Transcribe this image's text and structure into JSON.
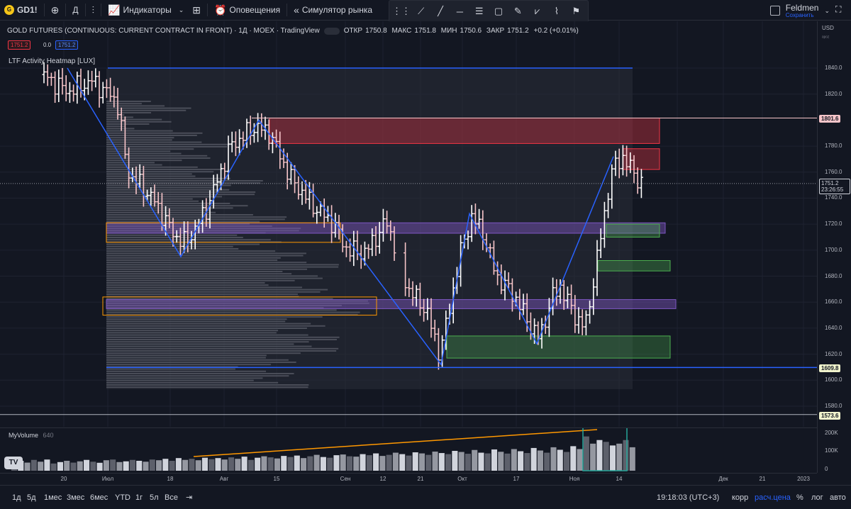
{
  "toolbar": {
    "symbol": "GD1!",
    "interval": "Д",
    "indicators_label": "Индикаторы",
    "alerts_label": "Оповещения",
    "replay_label": "Симулятор рынка",
    "user_name": "Feldmen",
    "user_status": "Сохранить"
  },
  "legend": {
    "title": "GOLD FUTURES (CONTINUOUS: CURRENT CONTRACT IN FRONT) · 1Д · MOEX · TradingView",
    "open_label": "ОТКР",
    "open": "1750.8",
    "high_label": "МАКС",
    "high": "1751.8",
    "low_label": "МИН",
    "low": "1750.6",
    "close_label": "ЗАКР",
    "close": "1751.2",
    "change": "+0.2 (+0.01%)",
    "bid": "1751.2",
    "spread": "0.0",
    "ask": "1751.2",
    "indicator_name": "LTF Activity Heatmap [LUX]"
  },
  "volume_legend": {
    "name": "MyVolume",
    "value": "640"
  },
  "price_axis": {
    "currency": "USD",
    "unit": "ᵃᵖᵒᶻ",
    "labels": [
      "1840.0",
      "1820.0",
      "1780.0",
      "1760.0",
      "1740.0",
      "1720.0",
      "1700.0",
      "1680.0",
      "1660.0",
      "1640.0",
      "1620.0",
      "1600.0",
      "1580.0"
    ],
    "tag_high": "1801.6",
    "tag_last": "1751.2",
    "tag_timer": "23:26:55",
    "tag_low": "1609.8",
    "tag_bottom": "1573.6",
    "volume_labels": [
      "200K",
      "100K",
      "0"
    ]
  },
  "time_axis": {
    "labels": [
      "20",
      "Июл",
      "18",
      "Авг",
      "15",
      "Сен",
      "12",
      "21",
      "Окт",
      "17",
      "Ноя",
      "14",
      "Дек",
      "21",
      "2023"
    ]
  },
  "bottom_bar": {
    "ranges": [
      "1д",
      "5д",
      "1мес",
      "3мес",
      "6мес",
      "YTD",
      "1г",
      "5л",
      "Все"
    ],
    "clock": "19:18:03 (UTC+3)",
    "adj": "корр",
    "price_mode": "расч.цена",
    "pct": "%",
    "log": "лог",
    "auto": "авто"
  },
  "colors": {
    "background": "#131722",
    "bull": "#ffffff",
    "bear": "#f7c5c9",
    "zigzag": "#2962ff",
    "supply_zone": "#f23645",
    "demand_zone": "#4caf50",
    "level_zone": "#7e57c2",
    "poc_box": "#ff9800",
    "volume_trend": "#ff9800"
  },
  "icons": [
    "plus-icon",
    "compare-icon",
    "layout-icon",
    "alarm-icon",
    "replay-icon",
    "trendline-icon",
    "fib-icon",
    "brush-icon",
    "pattern-icon",
    "text-icon",
    "fullscreen-icon"
  ],
  "chart_data": {
    "type": "bar",
    "title": "GOLD FUTURES (CONTINUOUS: CURRENT CONTRACT IN FRONT)",
    "timeframe": "1Д",
    "ylim": [
      1570,
      1860
    ],
    "last_price": 1751.2,
    "high_level": 1801.6,
    "low_level": 1609.8,
    "level_1573": 1573.6,
    "zigzag_points": [
      {
        "label": "Jun 20",
        "price": 1840
      },
      {
        "label": "Jul 13",
        "price": 1695
      },
      {
        "label": "Aug 08",
        "price": 1800
      },
      {
        "label": "Sep 28",
        "price": 1612
      },
      {
        "label": "Oct 05",
        "price": 1728
      },
      {
        "label": "Oct 28",
        "price": 1630
      },
      {
        "label": "Nov 03",
        "price": 1640
      },
      {
        "label": "Nov 15",
        "price": 1775
      }
    ],
    "zones": [
      {
        "type": "supply",
        "from": 1782,
        "to": 1800
      },
      {
        "type": "supply",
        "from": 1762,
        "to": 1778
      },
      {
        "type": "level",
        "from": 1716,
        "to": 1724
      },
      {
        "type": "demand",
        "from": 1710,
        "to": 1720
      },
      {
        "type": "demand",
        "from": 1685,
        "to": 1694
      },
      {
        "type": "level",
        "from": 1655,
        "to": 1662
      },
      {
        "type": "demand",
        "from": 1617,
        "to": 1634
      }
    ],
    "volume": {
      "ylim": [
        0,
        220000
      ],
      "values": [
        40,
        55,
        45,
        60,
        50,
        62,
        40,
        48,
        55,
        45,
        52,
        60,
        50,
        44,
        58,
        62,
        48,
        52,
        60,
        55,
        50,
        62,
        58,
        66,
        55,
        70,
        60,
        66,
        58,
        72,
        64,
        70,
        62,
        74,
        66,
        78,
        60,
        72,
        80,
        74,
        68,
        82,
        76,
        84,
        70,
        80,
        88,
        76,
        72,
        86,
        90,
        80,
        78,
        92,
        86,
        96,
        82,
        88,
        100,
        92,
        84,
        102,
        96,
        88,
        106,
        98,
        92,
        110,
        104,
        94,
        115,
        100,
        96,
        118,
        105,
        95,
        120,
        108,
        98,
        126,
        112,
        100,
        130,
        116,
        104,
        136,
        120,
        190,
        150,
        170,
        160,
        140,
        150,
        170,
        130
      ]
    }
  }
}
